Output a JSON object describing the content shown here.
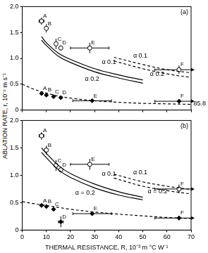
{
  "chart_data": [
    {
      "type": "scatter",
      "title": "(a)",
      "ylabel": "ABLATION RATE, r, 10⁻⁶ m s⁻¹",
      "xlim": [
        0,
        70
      ],
      "xticks": [
        0,
        10,
        20,
        30,
        40,
        50,
        60,
        70
      ],
      "ylim": [
        0,
        2
      ],
      "yticks": [
        0,
        0.5,
        {
          "value": 1,
          "label": "1.0"
        },
        1.5,
        {
          "value": 2,
          "label": "2.0"
        }
      ],
      "tick_labels": "y",
      "grid": false,
      "series": [
        {
          "type": "line",
          "line_style": "solid",
          "color": "#000000",
          "x": [
            8,
            10,
            15,
            20,
            30,
            40,
            50
          ],
          "values": [
            1.42,
            1.3,
            1.1,
            0.98,
            0.8,
            0.68,
            0.58
          ]
        },
        {
          "type": "line",
          "line_style": "solid",
          "color": "#000000",
          "x": [
            8,
            10,
            15,
            20,
            30,
            40,
            50
          ],
          "values": [
            1.35,
            1.25,
            1.04,
            0.92,
            0.74,
            0.62,
            0.52
          ]
        },
        {
          "type": "line",
          "line_style": "dashed",
          "color": "#000000",
          "x": [
            38,
            50,
            60,
            70
          ],
          "values": [
            1.02,
            0.88,
            0.78,
            0.72
          ]
        },
        {
          "type": "line",
          "line_style": "dashed",
          "color": "#000000",
          "x": [
            38,
            50,
            60,
            70
          ],
          "values": [
            0.95,
            0.8,
            0.7,
            0.63
          ]
        },
        {
          "type": "line",
          "line_style": "dashed",
          "color": "#000000",
          "x": [
            0,
            5,
            10,
            15,
            20,
            30,
            40,
            50,
            60,
            70
          ],
          "values": [
            0.5,
            0.4,
            0.33,
            0.27,
            0.23,
            0.18,
            0.15,
            0.13,
            0.12,
            0.11
          ]
        },
        {
          "type": "scatter",
          "marker": "open_circle",
          "color": "#000000",
          "x": [
            8,
            10,
            14,
            16,
            28,
            65
          ],
          "values": [
            1.72,
            1.58,
            1.28,
            1.2,
            1.2,
            0.78
          ],
          "point_labels": [
            "A",
            "B",
            "C",
            "D",
            "E",
            "F"
          ],
          "x_error": [
            [
              1,
              1
            ],
            [
              0,
              0
            ],
            [
              0,
              0
            ],
            [
              0,
              0
            ],
            [
              8,
              8
            ],
            [
              10,
              20.8
            ]
          ],
          "y_error": [
            [
              0.07,
              0.07
            ],
            [
              0.08,
              0.08
            ],
            [
              0.1,
              0.1
            ],
            [
              0.05,
              0.05
            ],
            [
              0.1,
              0.1
            ],
            [
              0.08,
              0.08
            ]
          ]
        },
        {
          "type": "scatter",
          "marker": "filled_diamond",
          "color": "#000000",
          "x": [
            8,
            10,
            13,
            16,
            29,
            65
          ],
          "values": [
            0.32,
            0.29,
            0.26,
            0.24,
            0.18,
            0.17
          ],
          "point_labels": [
            "A",
            "B",
            "C",
            "D",
            "E",
            "F"
          ],
          "x_error": [
            [
              0,
              0
            ],
            [
              0,
              0
            ],
            [
              0,
              0
            ],
            [
              0,
              0
            ],
            [
              8,
              8
            ],
            [
              10,
              20.8
            ]
          ],
          "y_error": [
            [
              0.03,
              0.03
            ],
            [
              0.03,
              0.03
            ],
            [
              0.03,
              0.03
            ],
            [
              0.03,
              0.03
            ],
            [
              0.03,
              0.03
            ],
            [
              0.04,
              0.04
            ]
          ]
        }
      ],
      "annotations": [
        {
          "text": "α 0.1",
          "x": 33,
          "y": 0.93
        },
        {
          "text": "α 0.2",
          "x": 26,
          "y": 0.6
        },
        {
          "text": "α 0.1",
          "x": 46,
          "y": 1.05
        },
        {
          "text": "α 0.2",
          "x": 53,
          "y": 0.7
        },
        {
          "text": "85.8",
          "x": 71,
          "y": 0.12
        }
      ]
    },
    {
      "type": "scatter",
      "title": "(b)",
      "xlabel": "THERMAL RESISTANCE, R, 10⁻³ m °C W⁻¹",
      "xlim": [
        0,
        70
      ],
      "xticks": [
        0,
        10,
        20,
        30,
        40,
        50,
        60,
        70
      ],
      "ylim": [
        0,
        2
      ],
      "yticks": [
        0,
        0.5,
        {
          "value": 1,
          "label": "1.0"
        },
        1.5,
        {
          "value": 2,
          "label": "2.0"
        }
      ],
      "grid": false,
      "series": [
        {
          "type": "line",
          "line_style": "solid",
          "color": "#000000",
          "x": [
            8,
            10,
            15,
            20,
            30,
            40,
            50
          ],
          "values": [
            1.5,
            1.4,
            1.18,
            1.03,
            0.84,
            0.7,
            0.6
          ]
        },
        {
          "type": "line",
          "line_style": "solid",
          "color": "#000000",
          "x": [
            8,
            10,
            15,
            20,
            30,
            40,
            50
          ],
          "values": [
            1.42,
            1.32,
            1.1,
            0.96,
            0.77,
            0.64,
            0.55
          ]
        },
        {
          "type": "line",
          "line_style": "dashed",
          "color": "#000000",
          "x": [
            38,
            50,
            60,
            70
          ],
          "values": [
            1.02,
            0.88,
            0.8,
            0.74
          ]
        },
        {
          "type": "line",
          "line_style": "dashed",
          "color": "#000000",
          "x": [
            38,
            50,
            60,
            70
          ],
          "values": [
            0.95,
            0.8,
            0.72,
            0.66
          ]
        },
        {
          "type": "line",
          "line_style": "dashed",
          "color": "#000000",
          "x": [
            0,
            5,
            10,
            20,
            30,
            40,
            50,
            60,
            70
          ],
          "values": [
            0.52,
            0.48,
            0.45,
            0.38,
            0.33,
            0.29,
            0.26,
            0.23,
            0.21
          ]
        },
        {
          "type": "scatter",
          "marker": "open_circle",
          "color": "#000000",
          "x": [
            8,
            10,
            14,
            16,
            28,
            65
          ],
          "values": [
            1.72,
            1.46,
            1.18,
            1.1,
            1.2,
            0.75
          ],
          "point_labels": [
            "A",
            "B",
            "C",
            "D",
            "E",
            "F"
          ],
          "x_error": [
            [
              1,
              1
            ],
            [
              0,
              0
            ],
            [
              0,
              0
            ],
            [
              0,
              0
            ],
            [
              8,
              8
            ],
            [
              10,
              20.8
            ]
          ],
          "y_error": [
            [
              0.07,
              0.07
            ],
            [
              0.08,
              0.08
            ],
            [
              0.1,
              0.1
            ],
            [
              0.05,
              0.05
            ],
            [
              0.1,
              0.1
            ],
            [
              0.08,
              0.08
            ]
          ]
        },
        {
          "type": "scatter",
          "marker": "filled_diamond",
          "color": "#000000",
          "x": [
            8,
            10,
            13,
            16,
            29,
            65
          ],
          "values": [
            0.45,
            0.43,
            0.38,
            0.15,
            0.3,
            0.22
          ],
          "point_labels": [
            "A",
            "B",
            "C",
            "D",
            "E",
            "F"
          ],
          "x_error": [
            [
              0,
              0
            ],
            [
              0,
              0
            ],
            [
              0,
              0
            ],
            [
              1,
              1
            ],
            [
              8,
              8
            ],
            [
              10,
              20.8
            ]
          ],
          "y_error": [
            [
              0.03,
              0.03
            ],
            [
              0.03,
              0.03
            ],
            [
              0.03,
              0.03
            ],
            [
              0.1,
              0.1
            ],
            [
              0.04,
              0.04
            ],
            [
              0.04,
              0.04
            ]
          ]
        }
      ],
      "annotations": [
        {
          "text": "α 0.1",
          "x": 33,
          "y": 1.02
        },
        {
          "text": "α = 0.2",
          "x": 22,
          "y": 0.68
        },
        {
          "text": "α 0.1",
          "x": 46,
          "y": 1.05
        },
        {
          "text": "α = 0.2",
          "x": 52,
          "y": 0.7
        }
      ]
    }
  ]
}
